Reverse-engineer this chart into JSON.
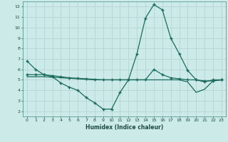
{
  "xlabel": "Humidex (Indice chaleur)",
  "bg_color": "#cceae8",
  "grid_color": "#b8d8d5",
  "line_color": "#1a6b5a",
  "xlim": [
    -0.5,
    23.5
  ],
  "ylim": [
    1.5,
    12.5
  ],
  "xticks": [
    0,
    1,
    2,
    3,
    4,
    5,
    6,
    7,
    8,
    9,
    10,
    11,
    12,
    13,
    14,
    15,
    16,
    17,
    18,
    19,
    20,
    21,
    22,
    23
  ],
  "yticks": [
    2,
    3,
    4,
    5,
    6,
    7,
    8,
    9,
    10,
    11,
    12
  ],
  "curve1_x": [
    0,
    1,
    2,
    3,
    4,
    5,
    6,
    7,
    8,
    9,
    10,
    11,
    12,
    13,
    14,
    15,
    16,
    17,
    18,
    19,
    20,
    21,
    22,
    23
  ],
  "curve1_y": [
    6.8,
    6.0,
    5.5,
    5.3,
    4.7,
    4.3,
    4.0,
    3.3,
    2.8,
    2.2,
    2.2,
    3.8,
    5.0,
    7.5,
    10.9,
    12.2,
    11.7,
    9.0,
    7.5,
    5.9,
    5.0,
    4.8,
    5.0,
    5.0
  ],
  "curve2_x": [
    0,
    1,
    2,
    3,
    4,
    5,
    6,
    7,
    8,
    9,
    10,
    11,
    12,
    13,
    14,
    15,
    16,
    17,
    18,
    19,
    20,
    21,
    22,
    23
  ],
  "curve2_y": [
    5.5,
    5.5,
    5.5,
    5.4,
    5.3,
    5.2,
    5.15,
    5.1,
    5.05,
    5.0,
    5.0,
    5.0,
    5.0,
    5.0,
    5.0,
    6.0,
    5.5,
    5.2,
    5.1,
    5.0,
    5.0,
    4.9,
    4.9,
    5.0
  ],
  "curve3_x": [
    0,
    1,
    2,
    3,
    4,
    5,
    6,
    7,
    8,
    9,
    10,
    11,
    12,
    13,
    14,
    15,
    16,
    17,
    18,
    19,
    20,
    21,
    22,
    23
  ],
  "curve3_y": [
    5.3,
    5.3,
    5.3,
    5.25,
    5.2,
    5.15,
    5.1,
    5.05,
    5.0,
    5.0,
    5.0,
    5.0,
    5.0,
    5.0,
    5.0,
    5.0,
    5.0,
    5.0,
    5.0,
    4.8,
    3.8,
    4.1,
    4.9,
    5.0
  ]
}
